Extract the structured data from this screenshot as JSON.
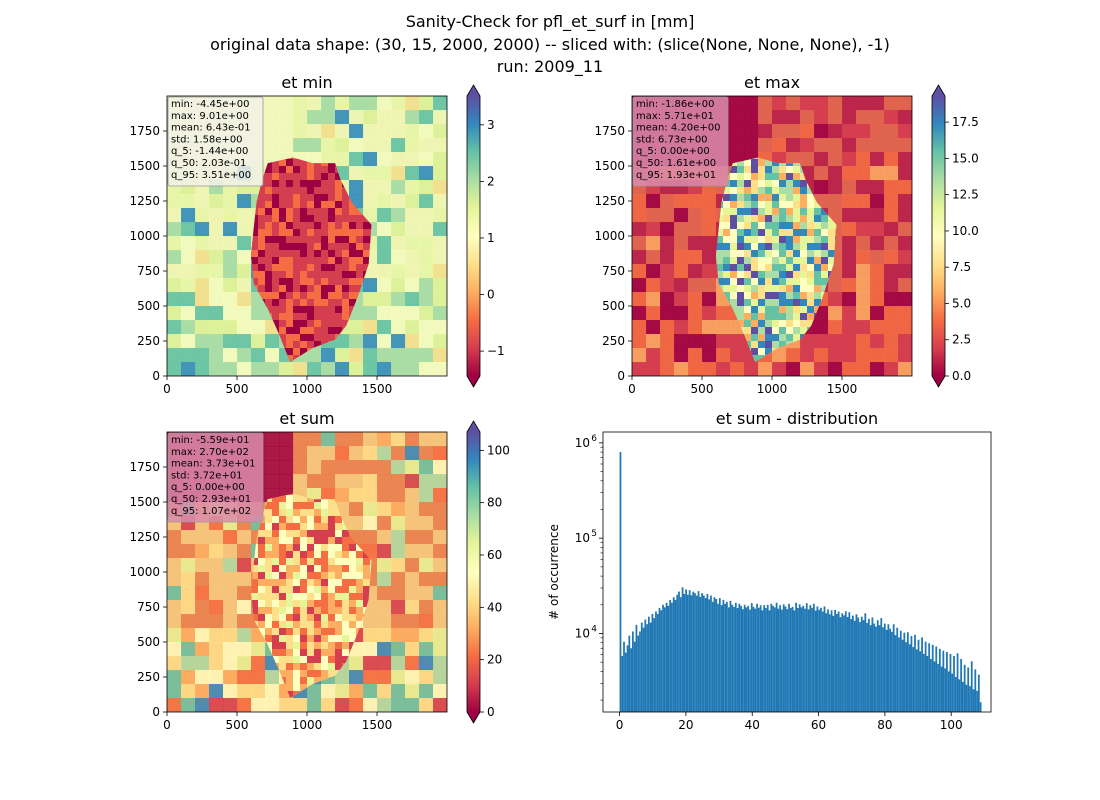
{
  "figure": {
    "title_lines": [
      "Sanity-Check for pfl_et_surf in [mm]",
      "original data shape: (30, 15, 2000, 2000) -- sliced with: (slice(None, None, None), -1)",
      "run: 2009_11"
    ]
  },
  "colors": {
    "cmap": [
      "#9e0142",
      "#d53e4f",
      "#f46d43",
      "#fdae61",
      "#fee08b",
      "#ffffbf",
      "#e6f598",
      "#abdda4",
      "#66c2a5",
      "#3288bd",
      "#5e4fa2"
    ],
    "hist_bar": "#1f77b4",
    "stats_box_light": "#f1f1e6",
    "stats_box_pink": "#d98cab"
  },
  "chart_data": [
    {
      "type": "heatmap",
      "title": "et min",
      "xlim": [
        0,
        2000
      ],
      "ylim": [
        0,
        2000
      ],
      "xticks": [
        0,
        500,
        1000,
        1500
      ],
      "yticks": [
        0,
        250,
        500,
        750,
        1000,
        1250,
        1500,
        1750
      ],
      "colorbar": {
        "range": [
          -1.44,
          3.51
        ],
        "ticks": [
          -1,
          0,
          1,
          2,
          3
        ],
        "tick_labels": [
          "−1",
          "0",
          "1",
          "2",
          "3"
        ],
        "extend": "both"
      },
      "stats": [
        "min: -4.45e+00",
        "max: 9.01e+00",
        "mean: 6.43e-01",
        "std: 1.58e+00",
        "q_5: -1.44e+00",
        "q_50: 2.03e-01",
        "q_95: 3.51e+00"
      ]
    },
    {
      "type": "heatmap",
      "title": "et max",
      "xlim": [
        0,
        2000
      ],
      "ylim": [
        0,
        2000
      ],
      "xticks": [
        0,
        500,
        1000,
        1500
      ],
      "yticks": [
        0,
        250,
        500,
        750,
        1000,
        1250,
        1500,
        1750
      ],
      "colorbar": {
        "range": [
          0,
          19.3
        ],
        "ticks": [
          0,
          2.5,
          5,
          7.5,
          10,
          12.5,
          15,
          17.5
        ],
        "tick_labels": [
          "0.0",
          "2.5",
          "5.0",
          "7.5",
          "10.0",
          "12.5",
          "15.0",
          "17.5"
        ],
        "extend": "both"
      },
      "stats": [
        "min: -1.86e+00",
        "max: 5.71e+01",
        "mean: 4.20e+00",
        "std: 6.73e+00",
        "q_5: 0.00e+00",
        "q_50: 1.61e+00",
        "q_95: 1.93e+01"
      ]
    },
    {
      "type": "heatmap",
      "title": "et sum",
      "xlim": [
        0,
        2000
      ],
      "ylim": [
        0,
        2000
      ],
      "xticks": [
        0,
        500,
        1000,
        1500
      ],
      "yticks": [
        0,
        250,
        500,
        750,
        1000,
        1250,
        1500,
        1750
      ],
      "colorbar": {
        "range": [
          0,
          107
        ],
        "ticks": [
          0,
          20,
          40,
          60,
          80,
          100
        ],
        "tick_labels": [
          "0",
          "20",
          "40",
          "60",
          "80",
          "100"
        ],
        "extend": "both"
      },
      "stats": [
        "min: -5.59e+01",
        "max: 2.70e+02",
        "mean: 3.73e+01",
        "std: 3.72e+01",
        "q_5: 0.00e+00",
        "q_50: 2.93e+01",
        "q_95: 1.07e+02"
      ]
    },
    {
      "type": "bar",
      "title": "et sum - distribution",
      "ylabel": "# of occurrence",
      "yscale": "log",
      "xlim": [
        -5,
        112
      ],
      "ylim": [
        1500,
        1300000
      ],
      "xticks": [
        0,
        20,
        40,
        60,
        80,
        100
      ],
      "yticks": [
        10000,
        100000,
        1000000
      ],
      "ytick_labels": [
        [
          "10",
          "4"
        ],
        [
          "10",
          "5"
        ],
        [
          "10",
          "6"
        ]
      ],
      "bin_start": 0,
      "bin_width": 0.535,
      "values": [
        800000,
        5800,
        8200,
        6300,
        7500,
        9500,
        7000,
        10500,
        8200,
        12300,
        9500,
        10500,
        13000,
        11500,
        14000,
        12500,
        15000,
        13000,
        16000,
        14500,
        17000,
        16000,
        18500,
        17500,
        20000,
        18800,
        21000,
        19500,
        22500,
        21000,
        24000,
        22500,
        25500,
        27500,
        24000,
        30500,
        26000,
        29000,
        25500,
        28500,
        25200,
        27500,
        26500,
        25000,
        27800,
        24200,
        26500,
        25000,
        23500,
        26000,
        22800,
        25000,
        21500,
        24000,
        23000,
        20500,
        23500,
        19800,
        22500,
        20500,
        21500,
        18800,
        22000,
        20000,
        19000,
        21000,
        18500,
        20500,
        19500,
        18000,
        20000,
        18800,
        19500,
        17800,
        20800,
        19000,
        18200,
        20500,
        18600,
        19800,
        17500,
        19800,
        18500,
        20000,
        17500,
        20500,
        19500,
        18800,
        21000,
        18200,
        19800,
        17800,
        20200,
        19200,
        18000,
        20500,
        18500,
        19000,
        17500,
        21000,
        18500,
        20200,
        18800,
        19500,
        18200,
        20800,
        17900,
        19800,
        18600,
        20500,
        17400,
        19200,
        17700,
        18600,
        17000,
        19200,
        16300,
        17900,
        15900,
        17500,
        15300,
        17700,
        16000,
        17000,
        14800,
        16300,
        15500,
        17100,
        14900,
        16700,
        14200,
        15400,
        13600,
        15900,
        14700,
        13200,
        15000,
        13800,
        16300,
        12900,
        14200,
        12200,
        14700,
        12700,
        11800,
        13800,
        12200,
        14500,
        11600,
        12700,
        10900,
        12500,
        11200,
        10400,
        12500,
        9600,
        11500,
        9100,
        10700,
        8600,
        10200,
        8100,
        10300,
        7700,
        9400,
        7200,
        9700,
        6800,
        8600,
        6500,
        9100,
        6100,
        8200,
        5800,
        7900,
        5400,
        7600,
        5100,
        7300,
        4800,
        6900,
        4500,
        6600,
        4300,
        6400,
        4000,
        6100,
        3800,
        5800,
        3500,
        6200,
        3300,
        5400,
        3100,
        4700,
        2900,
        4400,
        2800,
        5100,
        2600,
        4200,
        2500,
        3700,
        1900
      ]
    }
  ]
}
